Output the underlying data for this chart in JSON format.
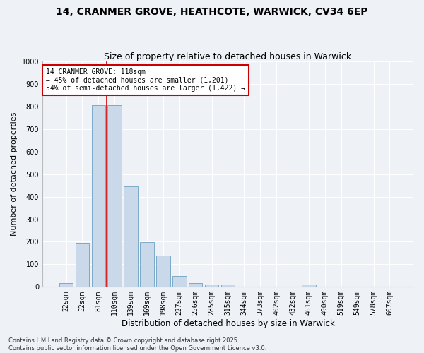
{
  "title_line1": "14, CRANMER GROVE, HEATHCOTE, WARWICK, CV34 6EP",
  "title_line2": "Size of property relative to detached houses in Warwick",
  "xlabel": "Distribution of detached houses by size in Warwick",
  "ylabel": "Number of detached properties",
  "bar_color": "#c9d9ea",
  "bar_edge_color": "#7aaac8",
  "categories": [
    "22sqm",
    "52sqm",
    "81sqm",
    "110sqm",
    "139sqm",
    "169sqm",
    "198sqm",
    "227sqm",
    "256sqm",
    "285sqm",
    "315sqm",
    "344sqm",
    "373sqm",
    "402sqm",
    "432sqm",
    "461sqm",
    "490sqm",
    "519sqm",
    "549sqm",
    "578sqm",
    "607sqm"
  ],
  "values": [
    18,
    195,
    805,
    805,
    445,
    198,
    140,
    48,
    18,
    10,
    10,
    0,
    0,
    0,
    0,
    10,
    0,
    0,
    0,
    0,
    0
  ],
  "ylim": [
    0,
    1000
  ],
  "yticks": [
    0,
    100,
    200,
    300,
    400,
    500,
    600,
    700,
    800,
    900,
    1000
  ],
  "annotation_text": "14 CRANMER GROVE: 118sqm\n← 45% of detached houses are smaller (1,201)\n54% of semi-detached houses are larger (1,422) →",
  "annotation_box_color": "white",
  "annotation_border_color": "#cc0000",
  "vline_color": "#cc0000",
  "vline_x_index": 2.5,
  "bg_color": "#eef2f7",
  "grid_color": "white",
  "footnote": "Contains HM Land Registry data © Crown copyright and database right 2025.\nContains public sector information licensed under the Open Government Licence v3.0.",
  "title_fontsize": 10,
  "subtitle_fontsize": 9,
  "xlabel_fontsize": 8.5,
  "ylabel_fontsize": 8,
  "tick_fontsize": 7,
  "annot_fontsize": 7,
  "footnote_fontsize": 6
}
